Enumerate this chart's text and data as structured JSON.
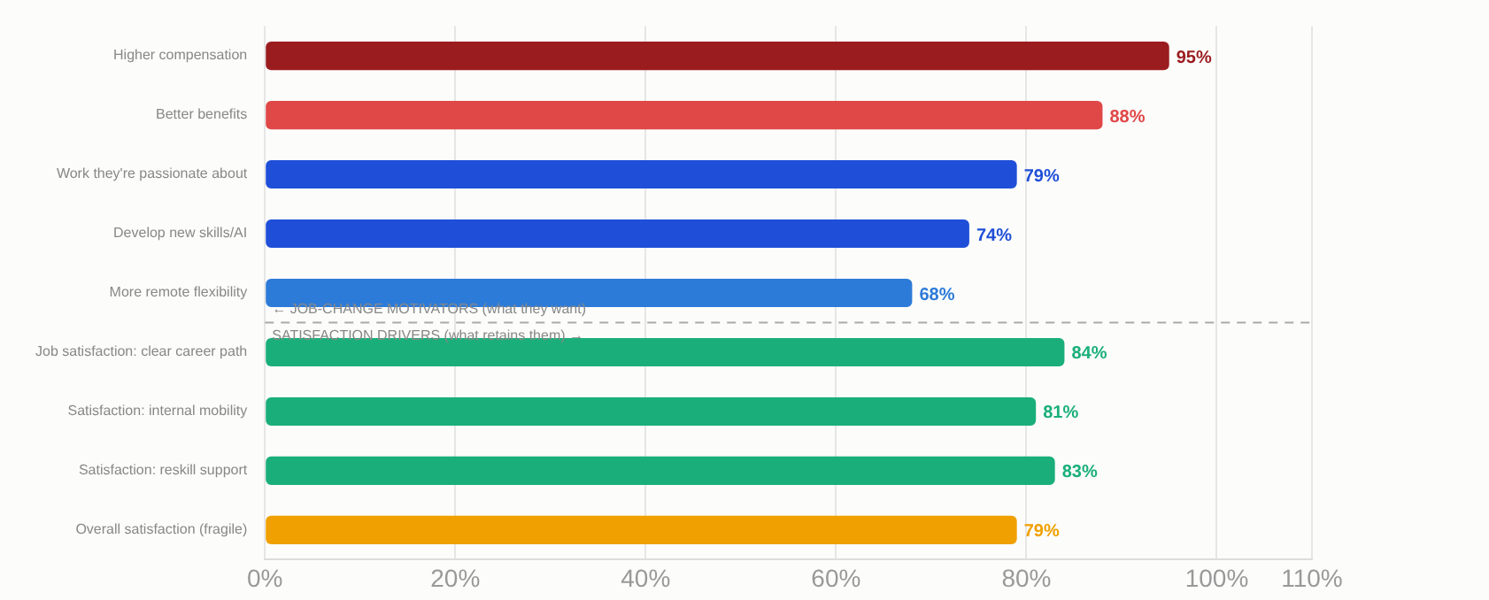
{
  "chart_data": {
    "type": "bar",
    "orientation": "horizontal",
    "categories": [
      "Higher compensation",
      "Better benefits",
      "Work they're passionate about",
      "Develop new skills/AI",
      "More remote flexibility",
      "Job satisfaction: clear career path",
      "Satisfaction: internal mobility",
      "Satisfaction: reskill support",
      "Overall satisfaction (fragile)"
    ],
    "values": [
      95,
      88,
      79,
      74,
      68,
      84,
      81,
      83,
      79
    ],
    "colors": [
      "#9b1c1f",
      "#e04848",
      "#1f4fd8",
      "#1f4fd8",
      "#2d7bd8",
      "#1aaf7a",
      "#1aaf7a",
      "#1aaf7a",
      "#f0a000"
    ],
    "xlim": [
      0,
      110
    ],
    "xticks": [
      {
        "value": 0,
        "label": "0%"
      },
      {
        "value": 20,
        "label": "20%"
      },
      {
        "value": 40,
        "label": "40%"
      },
      {
        "value": 60,
        "label": "60%"
      },
      {
        "value": 80,
        "label": "80%"
      },
      {
        "value": 100,
        "label": "100%"
      },
      {
        "value": 110,
        "label": "110%"
      }
    ],
    "value_labels": [
      "95%",
      "88%",
      "79%",
      "74%",
      "68%",
      "84%",
      "81%",
      "83%",
      "79%"
    ],
    "grid": "x",
    "legend": false,
    "ref_lines": [
      {
        "axis": "y",
        "value": "More remote flexibility",
        "color": "#aaaaaa",
        "line_style": "dashed"
      }
    ],
    "annotations": [
      "← JOB-CHANGE MOTIVATORS (what they want)",
      "SATISFACTION DRIVERS (what retains them) →"
    ]
  }
}
